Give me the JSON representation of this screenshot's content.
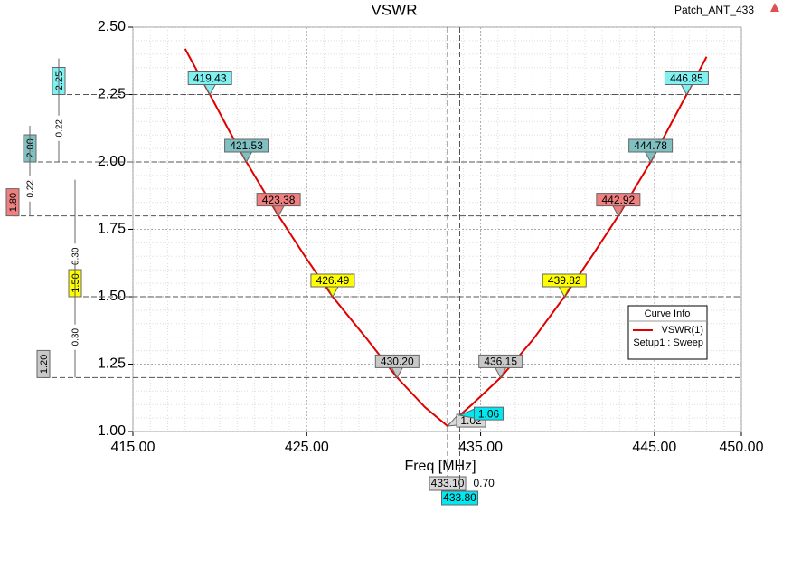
{
  "chart_data": {
    "type": "line",
    "title": "VSWR",
    "project": "Patch_ANT_433",
    "xlabel": "Freq [MHz]",
    "xlim": [
      415,
      450
    ],
    "ylim": [
      1,
      2.5
    ],
    "xticks": [
      {
        "value": 415,
        "label": "415.00"
      },
      {
        "value": 425,
        "label": "425.00"
      },
      {
        "value": 435,
        "label": "435.00"
      },
      {
        "value": 445,
        "label": "445.00"
      },
      {
        "value": 450,
        "label": "450.00"
      }
    ],
    "yticks": [
      {
        "value": 1,
        "label": "1.00"
      },
      {
        "value": 1.25,
        "label": "1.25"
      },
      {
        "value": 1.5,
        "label": "1.50"
      },
      {
        "value": 1.75,
        "label": "1.75"
      },
      {
        "value": 2,
        "label": "2.00"
      },
      {
        "value": 2.25,
        "label": "2.25"
      },
      {
        "value": 2.5,
        "label": "2.50"
      }
    ],
    "grid": true,
    "legend_title": "Curve Info",
    "legend_subtitle": "Setup1 : Sweep",
    "series": [
      {
        "name": "VSWR(1)",
        "color": "#e00000",
        "x": [
          418,
          419.43,
          420.5,
          421.53,
          423.38,
          425,
          426.49,
          428.5,
          430.2,
          431.8,
          433.1,
          433.8,
          434.5,
          436.15,
          438,
          439.82,
          441.5,
          442.92,
          444.78,
          446.85,
          448
        ],
        "values": [
          2.42,
          2.25,
          2.12,
          2.0,
          1.8,
          1.64,
          1.5,
          1.34,
          1.2,
          1.09,
          1.02,
          1.06,
          1.1,
          1.2,
          1.34,
          1.5,
          1.66,
          1.8,
          2.0,
          2.25,
          2.39
        ]
      }
    ],
    "freq_markers": [
      {
        "value": 419.43,
        "label": "419.43",
        "vswr": 2.25,
        "color": "#80f0f0"
      },
      {
        "value": 421.53,
        "label": "421.53",
        "vswr": 2.0,
        "color": "#80c0c0"
      },
      {
        "value": 423.38,
        "label": "423.38",
        "vswr": 1.8,
        "color": "#f08080"
      },
      {
        "value": 426.49,
        "label": "426.49",
        "vswr": 1.5,
        "color": "#ffff00"
      },
      {
        "value": 430.2,
        "label": "430.20",
        "vswr": 1.2,
        "color": "#c8c8c8"
      },
      {
        "value": 436.15,
        "label": "436.15",
        "vswr": 1.2,
        "color": "#c8c8c8"
      },
      {
        "value": 439.82,
        "label": "439.82",
        "vswr": 1.5,
        "color": "#ffff00"
      },
      {
        "value": 442.92,
        "label": "442.92",
        "vswr": 1.8,
        "color": "#f08080"
      },
      {
        "value": 444.78,
        "label": "444.78",
        "vswr": 2.0,
        "color": "#80c0c0"
      },
      {
        "value": 446.85,
        "label": "446.85",
        "vswr": 2.25,
        "color": "#80f0f0"
      }
    ],
    "level_markers": [
      {
        "value": 1.02,
        "label": "1.02",
        "freq": 433.1,
        "color": "#d8d8d8"
      },
      {
        "value": 1.06,
        "label": "1.06",
        "freq": 433.8,
        "color": "#00e8f0"
      }
    ],
    "y_markers": [
      {
        "value": 2.25,
        "label": "2.25",
        "color": "#80f0f0"
      },
      {
        "value": 2.0,
        "label": "2.00",
        "color": "#80c0c0"
      },
      {
        "value": 1.8,
        "label": "1.80",
        "color": "#f08080"
      },
      {
        "value": 1.5,
        "label": "1.50",
        "color": "#ffff00"
      },
      {
        "value": 1.2,
        "label": "1.20",
        "color": "#c8c8c8"
      }
    ],
    "y_deltas": [
      {
        "value": 0.22,
        "label": "0.22"
      },
      {
        "value": 0.22,
        "label": "0.22"
      },
      {
        "value": 0.3,
        "label": "0.30"
      },
      {
        "value": 0.3,
        "label": "0.30"
      }
    ],
    "x_markers": [
      {
        "value": 433.1,
        "label": "433.10",
        "color": "#d8d8d8"
      },
      {
        "value": 433.8,
        "label": "433.80",
        "color": "#00e8f0"
      }
    ],
    "x_delta": {
      "value": 0.7,
      "label": "0.70"
    }
  }
}
